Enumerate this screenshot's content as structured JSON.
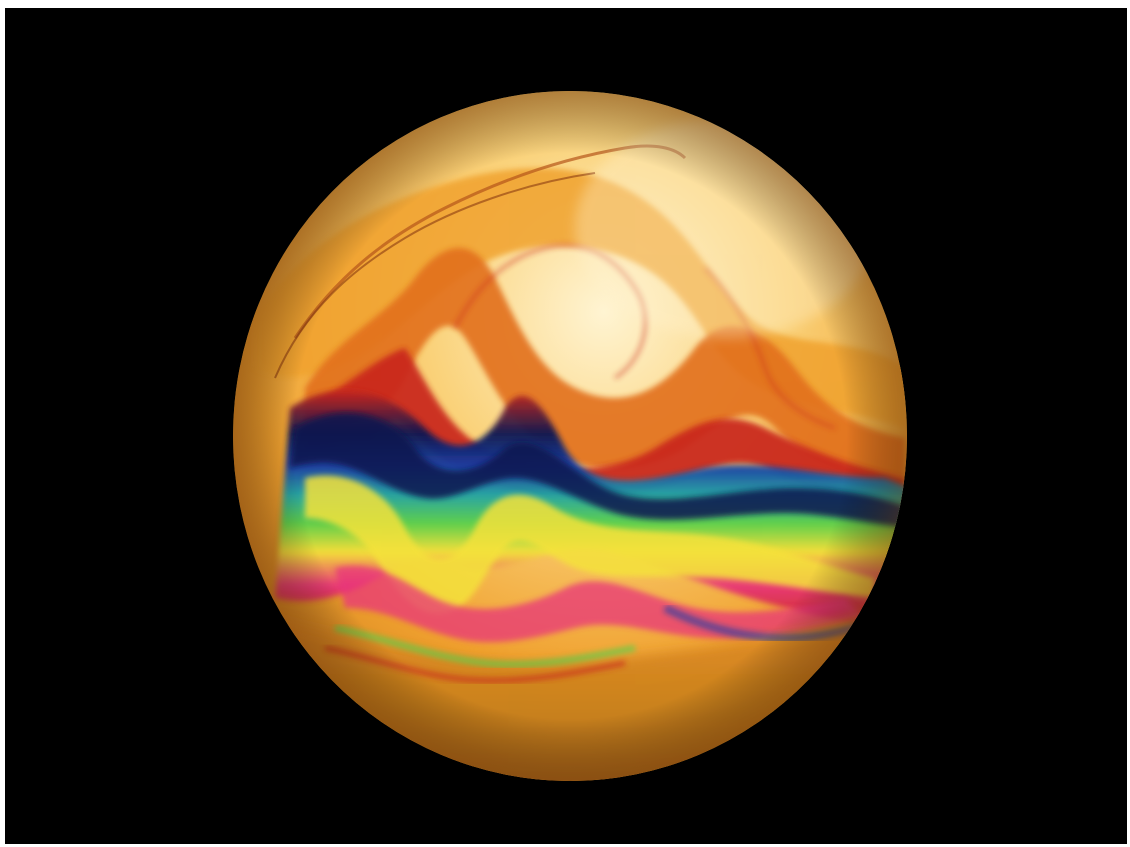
{
  "image": {
    "subject": "soap-bubble",
    "background_color": "#000000",
    "border_color": "#ffffff",
    "palette": {
      "highlight": "#fff1c9",
      "gold": "#f9c25a",
      "amber": "#f0a22e",
      "orange": "#e2701a",
      "red": "#c9271d",
      "magenta": "#e8357a",
      "navy": "#0a1650",
      "blue": "#153ea8",
      "teal": "#1fa3a6",
      "green": "#57d14b",
      "yellow": "#f4e23a"
    }
  }
}
